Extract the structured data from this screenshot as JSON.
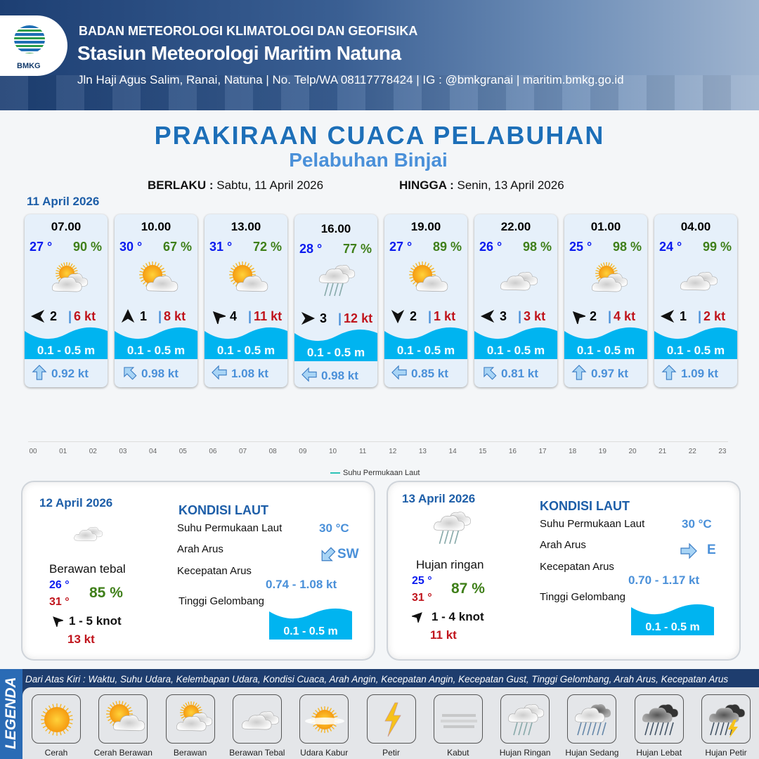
{
  "header": {
    "org": "BADAN METEOROLOGI KLIMATOLOGI DAN GEOFISIKA",
    "station": "Stasiun Meteorologi Maritim Natuna",
    "contact": "Jln Haji Agus Salim, Ranai, Natuna  | No. Telp/WA 08117778424 | IG : @bmkgranai | maritim.bmkg.go.id",
    "logo_text": "BMKG"
  },
  "title": "PRAKIRAAN CUACA PELABUHAN",
  "subtitle": "Pelabuhan Binjai",
  "validity": {
    "from_label": "BERLAKU :",
    "from": "Sabtu, 11 April 2026",
    "to_label": "HINGGA :",
    "to": "Senin, 13 April 2026"
  },
  "day1": {
    "date": "11 April 2026",
    "forecasts": [
      {
        "time": "07.00",
        "temp": "27 °",
        "hum": "90 %",
        "icon": "berawan",
        "wind_dir_deg": 270,
        "wind": "2",
        "gust": "6 kt",
        "wave": "0.1 - 0.5 m",
        "current_dir_deg": 0,
        "current": "0.92 kt"
      },
      {
        "time": "10.00",
        "temp": "30 °",
        "hum": "67 %",
        "icon": "cerah-berawan",
        "wind_dir_deg": 0,
        "wind": "1",
        "gust": "8 kt",
        "wave": "0.1 - 0.5 m",
        "current_dir_deg": 315,
        "current": "0.98 kt"
      },
      {
        "time": "13.00",
        "temp": "31 °",
        "hum": "72 %",
        "icon": "cerah-berawan",
        "wind_dir_deg": 315,
        "wind": "4",
        "gust": "11 kt",
        "wave": "0.1 - 0.5 m",
        "current_dir_deg": 270,
        "current": "1.08 kt"
      },
      {
        "time": "16.00",
        "temp": "28 °",
        "hum": "77 %",
        "icon": "hujan-ringan",
        "wind_dir_deg": 90,
        "wind": "3",
        "gust": "12 kt",
        "wave": "0.1 - 0.5 m",
        "current_dir_deg": 270,
        "current": "0.98 kt"
      },
      {
        "time": "19.00",
        "temp": "27 °",
        "hum": "89 %",
        "icon": "cerah-berawan",
        "wind_dir_deg": 180,
        "wind": "2",
        "gust": "1 kt",
        "wave": "0.1 - 0.5 m",
        "current_dir_deg": 270,
        "current": "0.85 kt"
      },
      {
        "time": "22.00",
        "temp": "26 °",
        "hum": "98 %",
        "icon": "berawan-tebal",
        "wind_dir_deg": 270,
        "wind": "3",
        "gust": "3 kt",
        "wave": "0.1 - 0.5 m",
        "current_dir_deg": 315,
        "current": "0.81 kt"
      },
      {
        "time": "01.00",
        "temp": "25 °",
        "hum": "98 %",
        "icon": "berawan",
        "wind_dir_deg": 315,
        "wind": "2",
        "gust": "4 kt",
        "wave": "0.1 - 0.5 m",
        "current_dir_deg": 0,
        "current": "0.97 kt"
      },
      {
        "time": "04.00",
        "temp": "24 °",
        "hum": "99 %",
        "icon": "berawan-tebal",
        "wind_dir_deg": 270,
        "wind": "1",
        "gust": "2 kt",
        "wave": "0.1 - 0.5 m",
        "current_dir_deg": 0,
        "current": "1.09 kt"
      }
    ]
  },
  "timeline": {
    "hours": [
      "00",
      "01",
      "02",
      "03",
      "04",
      "05",
      "06",
      "07",
      "08",
      "09",
      "10",
      "11",
      "12",
      "13",
      "14",
      "15",
      "16",
      "17",
      "18",
      "19",
      "20",
      "21",
      "22",
      "23"
    ],
    "series_label": "Suhu Permukaan Laut",
    "series_color": "#2cc3b7"
  },
  "days": [
    {
      "date": "12 April 2026",
      "icon": "berawan-tebal",
      "condition": "Berawan tebal",
      "tmin": "26 °",
      "tmax": "31 °",
      "hum": "85 %",
      "wind_dir_deg": 315,
      "wind": "1  - 5 knot",
      "gust": "13 kt",
      "sea_title": "KONDISI LAUT",
      "sst_label": "Suhu Permukaan Laut",
      "sst": "30 °C",
      "dir_label": "Arah Arus",
      "dir": "SW",
      "current_dir_deg": 225,
      "speed_label": "Kecepatan Arus",
      "speed": "0.74  - 1.08 kt",
      "wave_label": "Tinggi Gelombang",
      "wave": "0.1 - 0.5 m"
    },
    {
      "date": "13 April 2026",
      "icon": "hujan-ringan",
      "condition": "Hujan ringan",
      "tmin": "25 °",
      "tmax": "31 °",
      "hum": "87 %",
      "wind_dir_deg": 45,
      "wind": "1  - 4 knot",
      "gust": "11 kt",
      "sea_title": "KONDISI LAUT",
      "sst_label": "Suhu Permukaan Laut",
      "sst": "30 °C",
      "dir_label": "Arah Arus",
      "dir": "E",
      "current_dir_deg": 90,
      "speed_label": "Kecepatan Arus",
      "speed": "0.70  - 1.17 kt",
      "wave_label": "Tinggi Gelombang",
      "wave": "0.1 - 0.5 m"
    }
  ],
  "legend": {
    "title": "LEGENDA",
    "description": "Dari Atas Kiri : Waktu, Suhu Udara, Kelembapan Udara, Kondisi Cuaca, Arah Angin, Kecepatan Angin, Kecepatan Gust, Tinggi Gelombang, Arah Arus, Kecepatan Arus",
    "items": [
      {
        "name": "Cerah",
        "icon": "cerah"
      },
      {
        "name": "Cerah Berawan",
        "icon": "cerah-berawan"
      },
      {
        "name": "Berawan",
        "icon": "berawan"
      },
      {
        "name": "Berawan Tebal",
        "icon": "berawan-tebal"
      },
      {
        "name": "Udara Kabur",
        "icon": "udara-kabur"
      },
      {
        "name": "Petir",
        "icon": "petir"
      },
      {
        "name": "Kabut",
        "icon": "kabut"
      },
      {
        "name": "Hujan Ringan",
        "icon": "hujan-ringan"
      },
      {
        "name": "Hujan Sedang",
        "icon": "hujan-sedang"
      },
      {
        "name": "Hujan Lebat",
        "icon": "hujan-lebat"
      },
      {
        "name": "Hujan Petir",
        "icon": "hujan-petir"
      }
    ]
  },
  "colors": {
    "wave": "#00b4f0",
    "title": "#1d6fb8",
    "temp": "#0a1bef",
    "humidity": "#3f7f19",
    "gust": "#c0141c",
    "current": "#4a90d9"
  }
}
